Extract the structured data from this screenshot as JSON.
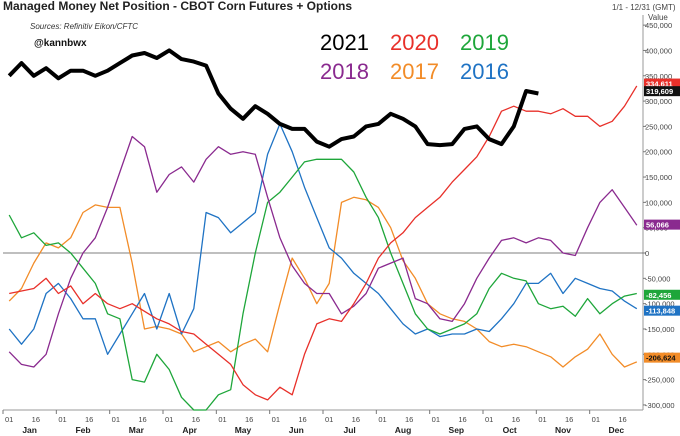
{
  "chart_data": {
    "type": "line",
    "title": "Managed Money Net Position - CBOT Corn Futures + Options",
    "date_range": "1/1 - 12/31 (GMT)",
    "value_label": "Value",
    "source": "Sources: Refinitiv Eikon/CFTC",
    "handle": "@kannbwx",
    "ylim": [
      -310000,
      470000
    ],
    "yticks": [
      -300000,
      -250000,
      -200000,
      -150000,
      -100000,
      -50000,
      0,
      50000,
      100000,
      150000,
      200000,
      250000,
      300000,
      350000,
      400000,
      450000
    ],
    "ytick_labels": [
      "-300,000",
      "-250,000",
      "-200,000",
      "-150,000",
      "-100,000",
      "-50,000",
      "0",
      "50,000",
      "100,000",
      "150,000",
      "200,000",
      "250,000",
      "300,000",
      "350,000",
      "400,000",
      "450,000"
    ],
    "xlim": [
      0,
      52
    ],
    "months": [
      "Jan",
      "Feb",
      "Mar",
      "Apr",
      "May",
      "Jun",
      "Jul",
      "Aug",
      "Sep",
      "Oct",
      "Nov",
      "Dec"
    ],
    "day_ticks": [
      "01",
      "16",
      "01",
      "16",
      "01",
      "16",
      "01",
      "16",
      "01",
      "16",
      "01",
      "16",
      "01",
      "16",
      "01",
      "16",
      "01",
      "16",
      "01",
      "16",
      "01",
      "16",
      "01",
      "16"
    ],
    "series": [
      {
        "name": "2021",
        "color": "#000000",
        "width": 4,
        "x": [
          0.5,
          1.5,
          2.5,
          3.5,
          4.5,
          5.5,
          6.5,
          7.5,
          8.5,
          9.5,
          10.5,
          11.5,
          12.5,
          13.5,
          14.5,
          15.5,
          16.5,
          17.5,
          18.5,
          19.5,
          20.5,
          21.5,
          22.5,
          23.5,
          24.5,
          25.5,
          26.5,
          27.5,
          28.5,
          29.5,
          30.5,
          31.5,
          32.5,
          33.5,
          34.5,
          35.5,
          36.5,
          37.5,
          38.5,
          39.5,
          40.5,
          41.5,
          42.5,
          43.5
        ],
        "values": [
          350000,
          375000,
          350000,
          365000,
          345000,
          360000,
          360000,
          350000,
          360000,
          375000,
          390000,
          395000,
          385000,
          400000,
          383000,
          378000,
          370000,
          315000,
          285000,
          265000,
          290000,
          275000,
          255000,
          245000,
          245000,
          220000,
          210000,
          225000,
          230000,
          250000,
          255000,
          275000,
          265000,
          250000,
          215000,
          213000,
          215000,
          245000,
          250000,
          225000,
          215000,
          250000,
          320000,
          315000
        ]
      },
      {
        "name": "2020",
        "color": "#e8302a",
        "width": 1.3,
        "x": [
          0.5,
          1.5,
          2.5,
          3.5,
          4.5,
          5.5,
          6.5,
          7.5,
          8.5,
          9.5,
          10.5,
          11.5,
          12.5,
          13.5,
          14.5,
          15.5,
          16.5,
          17.5,
          18.5,
          19.5,
          20.5,
          21.5,
          22.5,
          23.5,
          24.5,
          25.5,
          26.5,
          27.5,
          28.5,
          29.5,
          30.5,
          31.5,
          32.5,
          33.5,
          34.5,
          35.5,
          36.5,
          37.5,
          38.5,
          39.5,
          40.5,
          41.5,
          42.5,
          43.5,
          44.5,
          45.5,
          46.5,
          47.5,
          48.5,
          49.5,
          50.5,
          51.5
        ],
        "values": [
          -80000,
          -75000,
          -70000,
          -50000,
          -80000,
          -65000,
          -100000,
          -80000,
          -100000,
          -110000,
          -100000,
          -115000,
          -130000,
          -140000,
          -155000,
          -160000,
          -180000,
          -200000,
          -220000,
          -260000,
          -280000,
          -290000,
          -265000,
          -280000,
          -200000,
          -140000,
          -130000,
          -135000,
          -100000,
          -60000,
          -10000,
          20000,
          40000,
          70000,
          90000,
          110000,
          140000,
          165000,
          190000,
          230000,
          280000,
          290000,
          280000,
          280000,
          275000,
          285000,
          270000,
          270000,
          250000,
          260000,
          290000,
          330000
        ]
      },
      {
        "name": "2019",
        "color": "#1ea63a",
        "width": 1.3,
        "x": [
          0.5,
          1.5,
          2.5,
          3.5,
          4.5,
          5.5,
          6.5,
          7.5,
          8.5,
          9.5,
          10.5,
          11.5,
          12.5,
          13.5,
          14.5,
          15.5,
          16.5,
          17.5,
          18.5,
          19.5,
          20.5,
          21.5,
          22.5,
          23.5,
          24.5,
          25.5,
          26.5,
          27.5,
          28.5,
          29.5,
          30.5,
          31.5,
          32.5,
          33.5,
          34.5,
          35.5,
          36.5,
          37.5,
          38.5,
          39.5,
          40.5,
          41.5,
          42.5,
          43.5,
          44.5,
          45.5,
          46.5,
          47.5,
          48.5,
          49.5,
          50.5,
          51.5
        ],
        "values": [
          75000,
          30000,
          40000,
          15000,
          20000,
          0,
          -30000,
          -60000,
          -120000,
          -130000,
          -250000,
          -255000,
          -200000,
          -230000,
          -285000,
          -310000,
          -310000,
          -280000,
          -270000,
          -120000,
          0,
          100000,
          120000,
          150000,
          180000,
          185000,
          185000,
          185000,
          160000,
          110000,
          70000,
          0,
          -60000,
          -120000,
          -150000,
          -160000,
          -150000,
          -140000,
          -120000,
          -70000,
          -40000,
          -50000,
          -55000,
          -100000,
          -110000,
          -105000,
          -125000,
          -90000,
          -120000,
          -100000,
          -85000,
          -80000
        ]
      },
      {
        "name": "2018",
        "color": "#8a2a8f",
        "width": 1.3,
        "x": [
          0.5,
          1.5,
          2.5,
          3.5,
          4.5,
          5.5,
          6.5,
          7.5,
          8.5,
          9.5,
          10.5,
          11.5,
          12.5,
          13.5,
          14.5,
          15.5,
          16.5,
          17.5,
          18.5,
          19.5,
          20.5,
          21.5,
          22.5,
          23.5,
          24.5,
          25.5,
          26.5,
          27.5,
          28.5,
          29.5,
          30.5,
          31.5,
          32.5,
          33.5,
          34.5,
          35.5,
          36.5,
          37.5,
          38.5,
          39.5,
          40.5,
          41.5,
          42.5,
          43.5,
          44.5,
          45.5,
          46.5,
          47.5,
          48.5,
          49.5,
          50.5,
          51.5
        ],
        "values": [
          -195000,
          -220000,
          -225000,
          -200000,
          -120000,
          -50000,
          0,
          30000,
          90000,
          160000,
          230000,
          210000,
          120000,
          155000,
          170000,
          140000,
          185000,
          210000,
          195000,
          200000,
          195000,
          110000,
          30000,
          -25000,
          -60000,
          -80000,
          -80000,
          -120000,
          -105000,
          -80000,
          -30000,
          -20000,
          -10000,
          -90000,
          -100000,
          -130000,
          -135000,
          -100000,
          -50000,
          -10000,
          25000,
          30000,
          20000,
          30000,
          25000,
          0,
          -5000,
          50000,
          100000,
          125000,
          90000,
          55000
        ]
      },
      {
        "name": "2017",
        "color": "#f28c28",
        "width": 1.3,
        "x": [
          0.5,
          1.5,
          2.5,
          3.5,
          4.5,
          5.5,
          6.5,
          7.5,
          8.5,
          9.5,
          10.5,
          11.5,
          12.5,
          13.5,
          14.5,
          15.5,
          16.5,
          17.5,
          18.5,
          19.5,
          20.5,
          21.5,
          22.5,
          23.5,
          24.5,
          25.5,
          26.5,
          27.5,
          28.5,
          29.5,
          30.5,
          31.5,
          32.5,
          33.5,
          34.5,
          35.5,
          36.5,
          37.5,
          38.5,
          39.5,
          40.5,
          41.5,
          42.5,
          43.5,
          44.5,
          45.5,
          46.5,
          47.5,
          48.5,
          49.5,
          50.5,
          51.5
        ],
        "values": [
          -95000,
          -70000,
          -20000,
          20000,
          10000,
          30000,
          80000,
          95000,
          90000,
          90000,
          -20000,
          -150000,
          -145000,
          -150000,
          -160000,
          -195000,
          -185000,
          -175000,
          -195000,
          -180000,
          -170000,
          -195000,
          -100000,
          -10000,
          -50000,
          -100000,
          -60000,
          100000,
          110000,
          105000,
          90000,
          50000,
          -15000,
          -50000,
          -100000,
          -120000,
          -130000,
          -135000,
          -150000,
          -175000,
          -185000,
          -180000,
          -185000,
          -195000,
          -205000,
          -225000,
          -205000,
          -190000,
          -160000,
          -200000,
          -225000,
          -215000
        ]
      },
      {
        "name": "2016",
        "color": "#1f73c4",
        "width": 1.3,
        "x": [
          0.5,
          1.5,
          2.5,
          3.5,
          4.5,
          5.5,
          6.5,
          7.5,
          8.5,
          9.5,
          10.5,
          11.5,
          12.5,
          13.5,
          14.5,
          15.5,
          16.5,
          17.5,
          18.5,
          19.5,
          20.5,
          21.5,
          22.5,
          23.5,
          24.5,
          25.5,
          26.5,
          27.5,
          28.5,
          29.5,
          30.5,
          31.5,
          32.5,
          33.5,
          34.5,
          35.5,
          36.5,
          37.5,
          38.5,
          39.5,
          40.5,
          41.5,
          42.5,
          43.5,
          44.5,
          45.5,
          46.5,
          47.5,
          48.5,
          49.5,
          50.5,
          51.5
        ],
        "values": [
          -150000,
          -180000,
          -150000,
          -80000,
          -60000,
          -90000,
          -130000,
          -130000,
          -200000,
          -160000,
          -120000,
          -80000,
          -150000,
          -80000,
          -160000,
          -110000,
          80000,
          70000,
          40000,
          60000,
          80000,
          195000,
          255000,
          200000,
          130000,
          70000,
          10000,
          -10000,
          -40000,
          -60000,
          -80000,
          -110000,
          -140000,
          -160000,
          -150000,
          -165000,
          -160000,
          -160000,
          -150000,
          -155000,
          -130000,
          -100000,
          -60000,
          -60000,
          -40000,
          -80000,
          -50000,
          -60000,
          -70000,
          -75000,
          -95000,
          -110000
        ]
      }
    ],
    "last_value_flags": [
      {
        "series": "2020",
        "text": "334,611",
        "value": 334611,
        "bg": "#e8302a",
        "fg": "#ffffff"
      },
      {
        "series": "2021",
        "text": "319,609",
        "value": 319609,
        "bg": "#111111",
        "fg": "#ffffff"
      },
      {
        "series": "2018",
        "text": "56,066",
        "value": 56066,
        "bg": "#8a2a8f",
        "fg": "#ffffff"
      },
      {
        "series": "2019",
        "text": "-82,456",
        "value": -82456,
        "bg": "#1ea63a",
        "fg": "#ffffff"
      },
      {
        "series": "2016",
        "text": "-113,848",
        "value": -113848,
        "bg": "#1f73c4",
        "fg": "#ffffff"
      },
      {
        "series": "2017",
        "text": "-206,624",
        "value": -206624,
        "bg": "#f28c28",
        "fg": "#111111"
      }
    ],
    "legend": {
      "placement": "top-center",
      "rows": [
        [
          {
            "label": "2021",
            "color": "#000000"
          },
          {
            "label": "2020",
            "color": "#e8302a"
          },
          {
            "label": "2019",
            "color": "#1ea63a"
          }
        ],
        [
          {
            "label": "2018",
            "color": "#8a2a8f"
          },
          {
            "label": "2017",
            "color": "#f28c28"
          },
          {
            "label": "2016",
            "color": "#1f73c4"
          }
        ]
      ]
    },
    "grid": false,
    "zero_line": true
  }
}
